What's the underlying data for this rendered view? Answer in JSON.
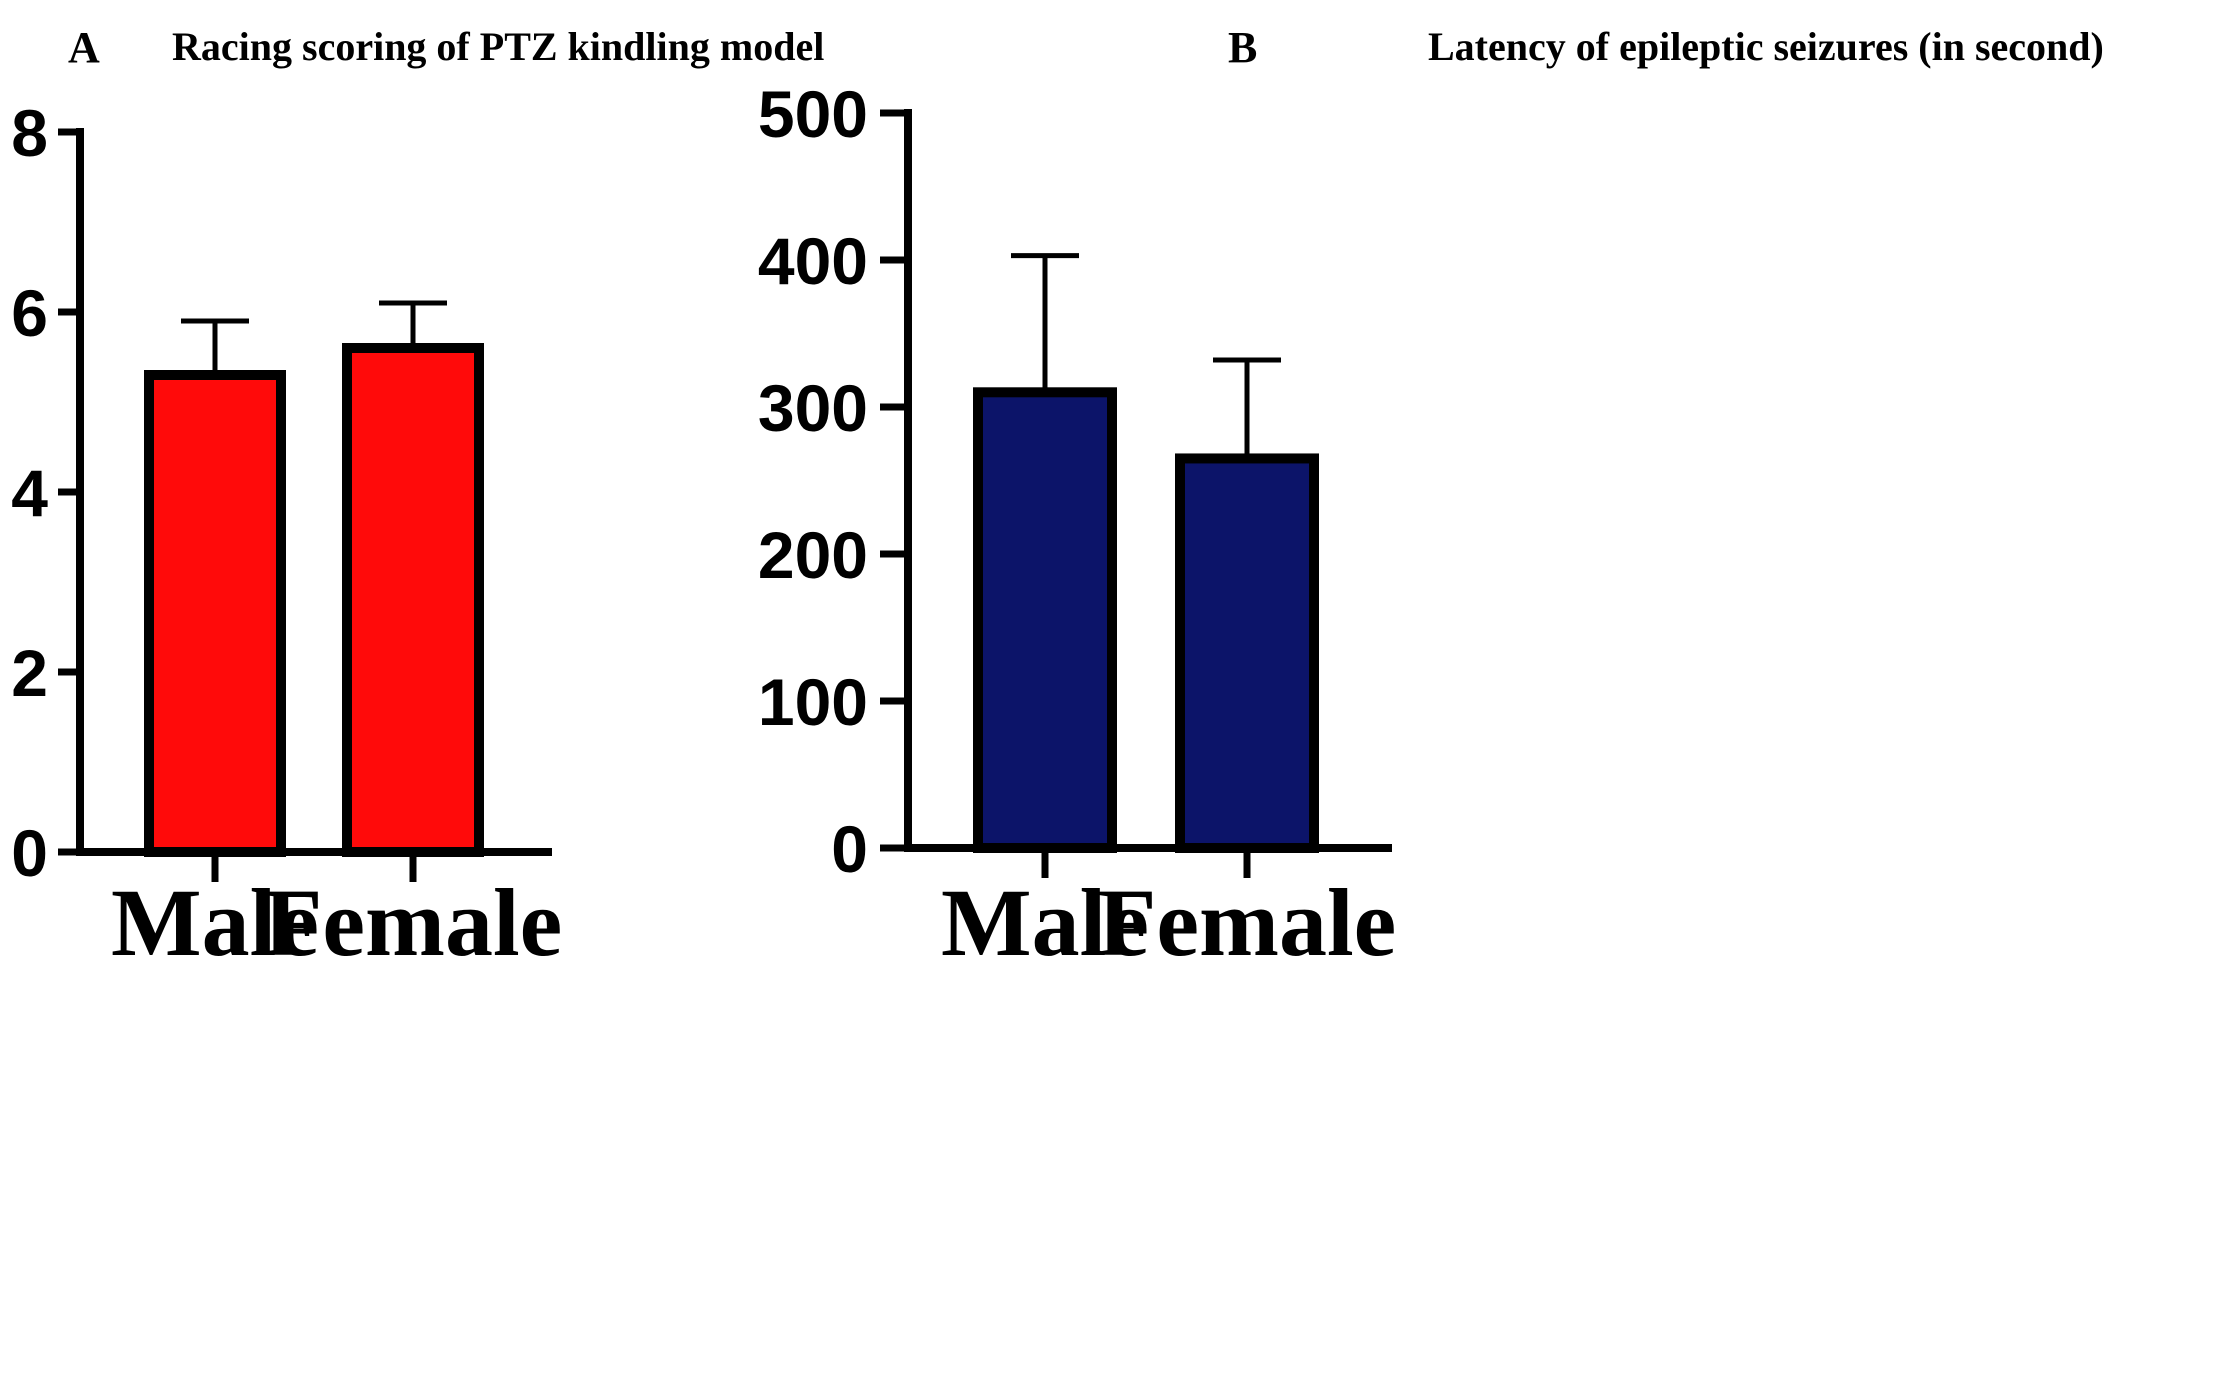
{
  "chart_data": [
    {
      "panel": "A",
      "type": "bar",
      "title": "Racing scoring of PTZ kindling model",
      "categories": [
        "Male",
        "Female"
      ],
      "values": [
        5.3,
        5.6
      ],
      "error_upper": [
        5.9,
        6.1
      ],
      "ylim": [
        0,
        8
      ],
      "yticks": [
        0,
        2,
        4,
        6,
        8
      ],
      "xlabel": "",
      "ylabel": "",
      "bar_color": "#ff0a0a"
    },
    {
      "panel": "B",
      "type": "bar",
      "title": "Latency of epileptic seizures (in second)",
      "categories": [
        "Male",
        "Female"
      ],
      "values": [
        310,
        265
      ],
      "error_upper": [
        403,
        332
      ],
      "ylim": [
        0,
        500
      ],
      "yticks": [
        0,
        100,
        200,
        300,
        400,
        500
      ],
      "xlabel": "",
      "ylabel": "",
      "bar_color": "#0c1469"
    }
  ]
}
